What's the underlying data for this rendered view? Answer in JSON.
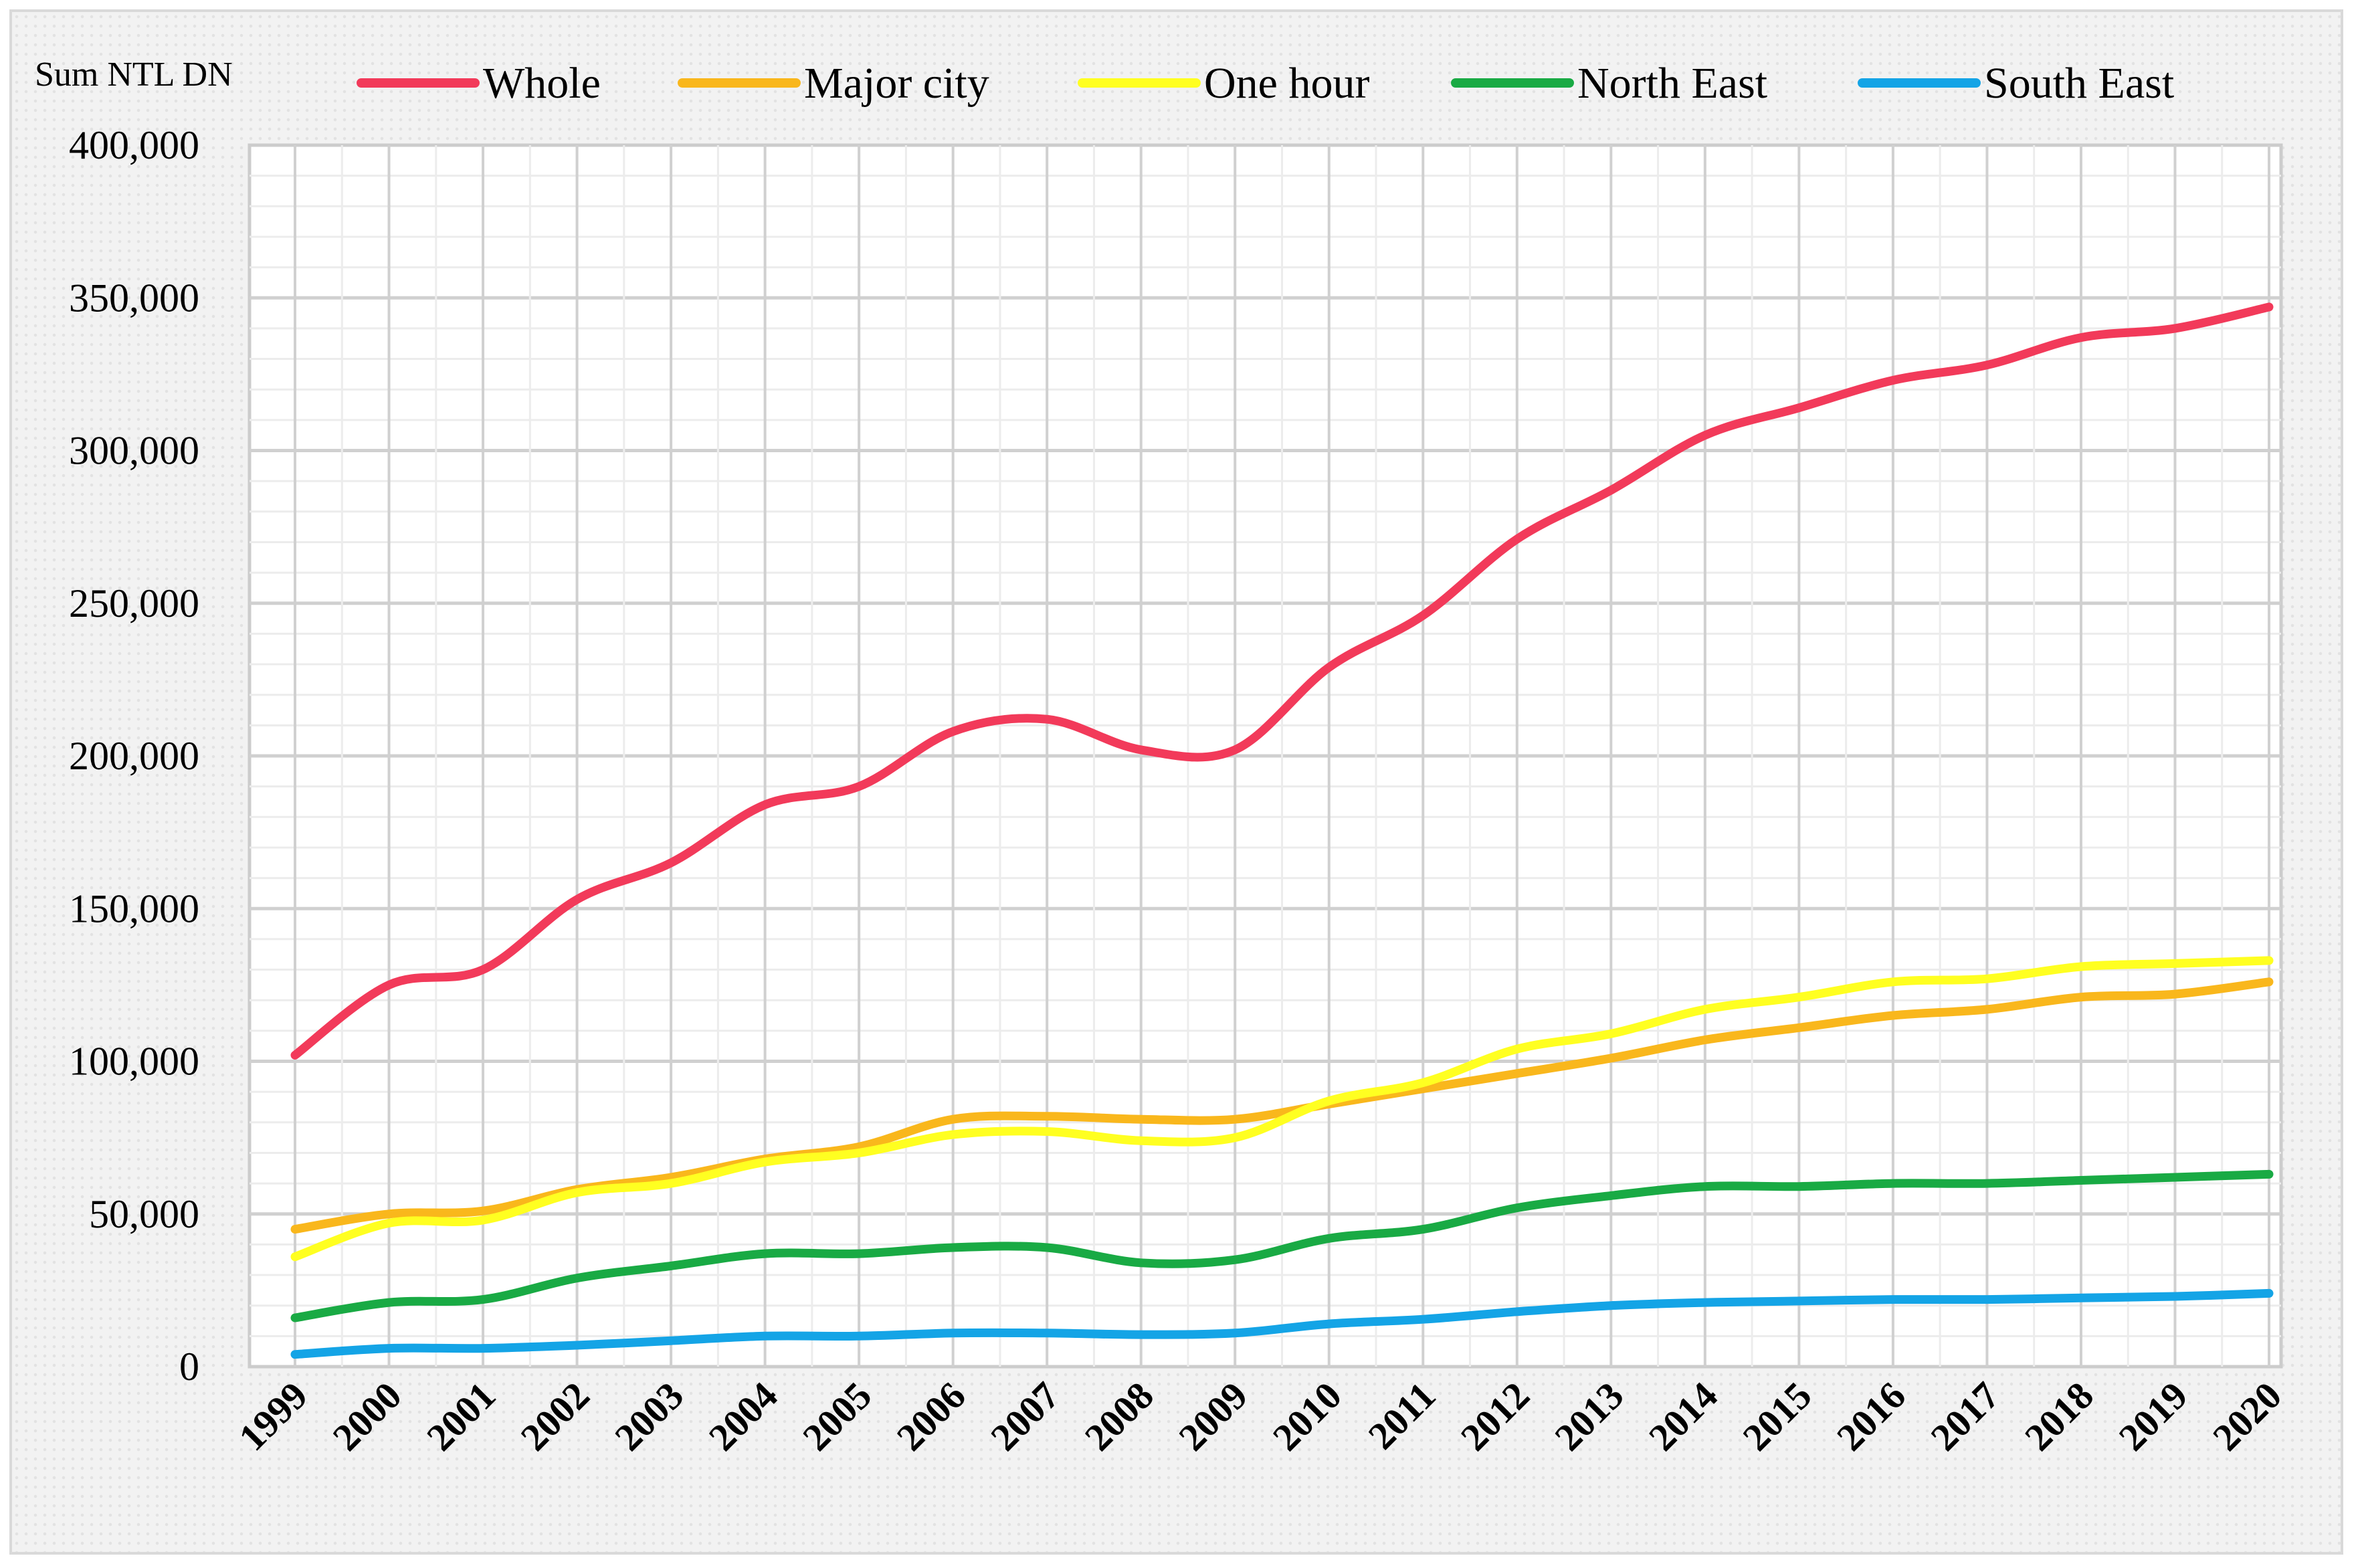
{
  "chart_data": {
    "type": "line",
    "title": "",
    "xlabel": "",
    "ylabel": "Sum NTL DN",
    "ylim": [
      0,
      400000
    ],
    "y_ticks": [
      {
        "value": 0,
        "label": "0"
      },
      {
        "value": 50000,
        "label": "50,000"
      },
      {
        "value": 100000,
        "label": "100,000"
      },
      {
        "value": 150000,
        "label": "150,000"
      },
      {
        "value": 200000,
        "label": "200,000"
      },
      {
        "value": 250000,
        "label": "250,000"
      },
      {
        "value": 300000,
        "label": "300,000"
      },
      {
        "value": 350000,
        "label": "350,000"
      },
      {
        "value": 400000,
        "label": "400,000"
      }
    ],
    "grid": true,
    "legend_position": "top",
    "categories": [
      "1999",
      "2000",
      "2001",
      "2002",
      "2003",
      "2004",
      "2005",
      "2006",
      "2007",
      "2008",
      "2009",
      "2010",
      "2011",
      "2012",
      "2013",
      "2014",
      "2015",
      "2016",
      "2017",
      "2018",
      "2019",
      "2020"
    ],
    "series": [
      {
        "name": "Whole",
        "color": "#f23a5a",
        "values": [
          102000,
          125000,
          130000,
          153000,
          165000,
          184000,
          190000,
          208000,
          212000,
          202000,
          202000,
          229000,
          246000,
          271000,
          287000,
          305000,
          314000,
          323000,
          328000,
          337000,
          340000,
          347000
        ]
      },
      {
        "name": "Major city",
        "color": "#f9b71c",
        "values": [
          45000,
          50000,
          51000,
          58000,
          62000,
          68000,
          72000,
          81000,
          82000,
          81000,
          81000,
          86000,
          91000,
          96000,
          101000,
          107000,
          111000,
          115000,
          117000,
          121000,
          122000,
          126000
        ]
      },
      {
        "name": "One hour",
        "color": "#ffff21",
        "values": [
          36000,
          47000,
          48000,
          57000,
          60000,
          67000,
          70000,
          76000,
          77000,
          74000,
          75000,
          87000,
          93000,
          104000,
          109000,
          117000,
          121000,
          126000,
          127000,
          131000,
          132000,
          133000
        ]
      },
      {
        "name": "North East",
        "color": "#19aa44",
        "values": [
          16000,
          21000,
          22000,
          29000,
          33000,
          37000,
          37000,
          39000,
          39000,
          34000,
          35000,
          42000,
          45000,
          52000,
          56000,
          59000,
          59000,
          60000,
          60000,
          61000,
          62000,
          63000
        ]
      },
      {
        "name": "South East",
        "color": "#14a4e6",
        "values": [
          4000,
          6000,
          6000,
          7000,
          8500,
          10000,
          10000,
          11000,
          11000,
          10500,
          11000,
          14000,
          15500,
          18000,
          20000,
          21000,
          21500,
          22000,
          22000,
          22500,
          23000,
          24000
        ]
      }
    ]
  }
}
